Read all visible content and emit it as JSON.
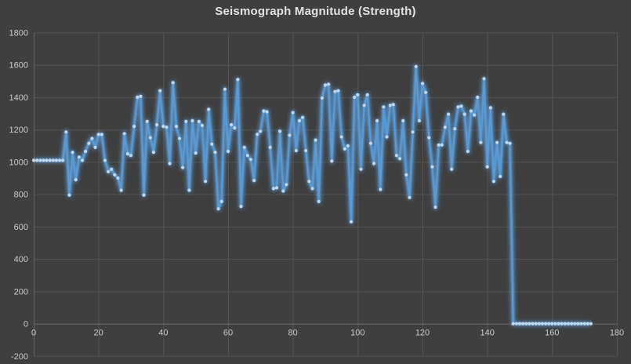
{
  "title": "Seismograph Magnitude (Strength)",
  "colors": {
    "background": "#3f3f3f",
    "gridline": "#535353",
    "axis_line": "#666666",
    "axis_label": "#c9c9c9",
    "title_text": "#e2e2e2",
    "line": "#5b9bd5",
    "line_glow": "#5b9bd5",
    "marker": "#bdd7ee"
  },
  "chart_data": {
    "type": "line",
    "title": "Seismograph Magnitude (Strength)",
    "xlabel": "",
    "ylabel": "",
    "xlim": [
      0,
      180
    ],
    "ylim": [
      -200,
      1800
    ],
    "x_ticks": [
      0,
      20,
      40,
      60,
      80,
      100,
      120,
      140,
      160,
      180
    ],
    "y_ticks": [
      -200,
      0,
      200,
      400,
      600,
      800,
      1000,
      1200,
      1400,
      1600,
      1800
    ],
    "grid": true,
    "legend": false,
    "marker_style": "circle",
    "glow_effect": true,
    "x_start": 0,
    "x_step": 1,
    "values": [
      1010,
      1010,
      1010,
      1010,
      1010,
      1010,
      1010,
      1010,
      1010,
      1010,
      1185,
      795,
      1060,
      890,
      1030,
      1010,
      1065,
      1115,
      1145,
      1090,
      1170,
      1170,
      1010,
      940,
      955,
      920,
      900,
      825,
      1175,
      1050,
      1040,
      1220,
      1400,
      1405,
      795,
      1250,
      1150,
      1060,
      1230,
      1440,
      1220,
      1215,
      990,
      1490,
      1220,
      1145,
      965,
      1250,
      825,
      1255,
      1055,
      1250,
      1225,
      880,
      1325,
      1110,
      1060,
      710,
      755,
      1450,
      1065,
      1230,
      1210,
      1510,
      725,
      1090,
      1040,
      1015,
      885,
      1170,
      1190,
      1315,
      1310,
      1090,
      835,
      840,
      1190,
      820,
      860,
      1165,
      1305,
      1070,
      1255,
      1275,
      1070,
      880,
      835,
      1135,
      755,
      1395,
      1475,
      1480,
      1005,
      1435,
      1440,
      1155,
      1080,
      1100,
      630,
      1400,
      1415,
      955,
      1350,
      1415,
      1115,
      990,
      1255,
      830,
      1340,
      1155,
      1350,
      1355,
      1040,
      1020,
      1255,
      920,
      780,
      1185,
      1590,
      1255,
      1485,
      1430,
      1150,
      970,
      720,
      1105,
      1105,
      1215,
      1295,
      955,
      1205,
      1340,
      1345,
      1295,
      1065,
      1315,
      1290,
      1400,
      1120,
      1515,
      970,
      1335,
      880,
      1120,
      910,
      1295,
      1120,
      1115,
      0,
      0,
      0,
      0,
      0,
      0,
      0,
      0,
      0,
      0,
      0,
      0,
      0,
      0,
      0,
      0,
      0,
      0,
      0,
      0,
      0,
      0,
      0,
      0,
      0
    ]
  }
}
